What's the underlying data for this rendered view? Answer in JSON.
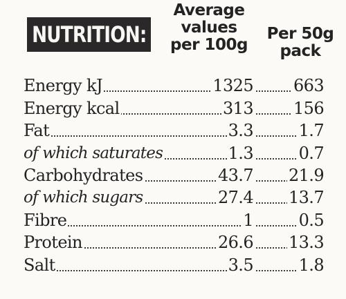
{
  "header": {
    "title": "NUTRITION:",
    "col_100g": [
      "Average",
      "values",
      "per 100g"
    ],
    "col_pack": [
      "Per 50g",
      "pack"
    ]
  },
  "rows": [
    {
      "label": "Energy kJ",
      "per_100g": "1325",
      "per_pack": "663",
      "italic": false
    },
    {
      "label": "Energy kcal",
      "per_100g": "313",
      "per_pack": "156",
      "italic": false
    },
    {
      "label": "Fat",
      "per_100g": "3.3",
      "per_pack": "1.7",
      "italic": false
    },
    {
      "label": "of which saturates",
      "per_100g": "1.3",
      "per_pack": "0.7",
      "italic": true
    },
    {
      "label": "Carbohydrates",
      "per_100g": "43.7",
      "per_pack": "21.9",
      "italic": false
    },
    {
      "label": "of which sugars",
      "per_100g": "27.4",
      "per_pack": "13.7",
      "italic": true
    },
    {
      "label": "Fibre",
      "per_100g": "1",
      "per_pack": "0.5",
      "italic": false
    },
    {
      "label": "Protein",
      "per_100g": "26.6",
      "per_pack": "13.3",
      "italic": false
    },
    {
      "label": "Salt",
      "per_100g": "3.5",
      "per_pack": "1.8",
      "italic": false
    }
  ]
}
